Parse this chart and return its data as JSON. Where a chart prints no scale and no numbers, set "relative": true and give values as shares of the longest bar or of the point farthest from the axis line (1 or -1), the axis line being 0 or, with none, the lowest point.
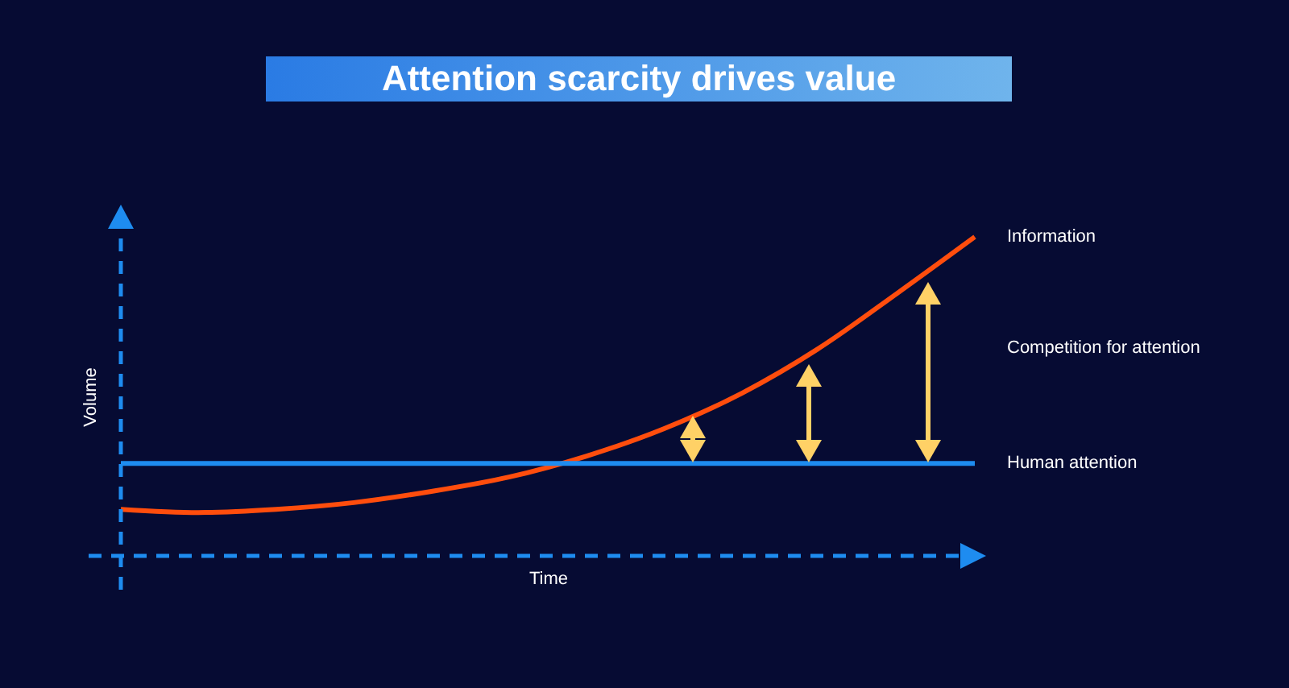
{
  "chart_data": {
    "type": "line",
    "title": "Attention scarcity drives value",
    "xlabel": "Time",
    "ylabel": "Volume",
    "relative": true,
    "categories": [
      null,
      null,
      null,
      null,
      null,
      null,
      null,
      null,
      null,
      null,
      null,
      null
    ],
    "series": [
      {
        "name": "Information",
        "color": "#ff4d0d",
        "values": [
          0.146,
          0.136,
          0.146,
          0.167,
          0.202,
          0.247,
          0.313,
          0.399,
          0.51,
          0.652,
          0.823,
          1
        ]
      },
      {
        "name": "Human attention",
        "color": "#1e8cf0",
        "values": [
          0.29,
          0.29,
          0.29,
          0.29,
          0.29,
          0.29,
          0.29,
          0.29,
          0.29,
          0.29,
          0.29,
          0.29
        ]
      }
    ],
    "annotations": [
      "Competition for attention"
    ]
  }
}
